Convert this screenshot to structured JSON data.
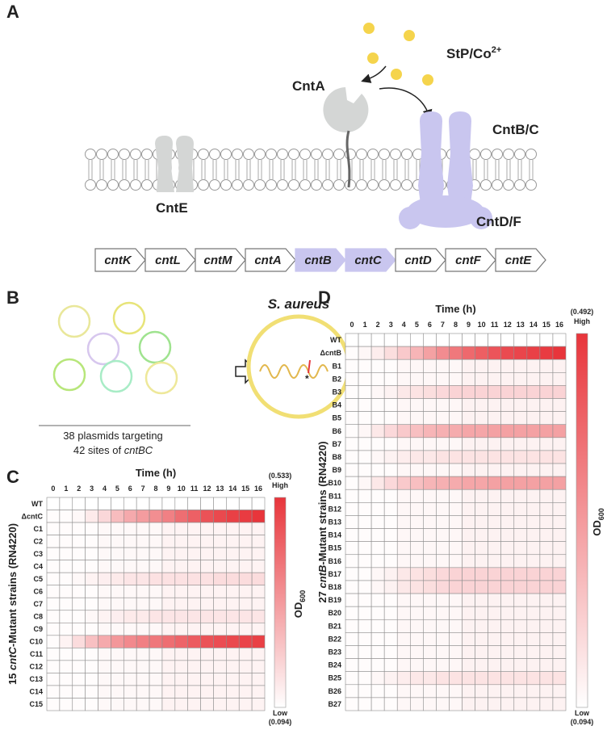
{
  "panels": {
    "a": "A",
    "b": "B",
    "c": "C",
    "d": "D"
  },
  "diagram": {
    "ligand": {
      "text": "StP/Co",
      "sup": "2+"
    },
    "cntA": "CntA",
    "cntBC": "CntB/C",
    "cntE": "CntE",
    "cntDF": "CntD/F",
    "genes": [
      {
        "name": "cntK",
        "highlight": false
      },
      {
        "name": "cntL",
        "highlight": false
      },
      {
        "name": "cntM",
        "highlight": false
      },
      {
        "name": "cntA",
        "highlight": false
      },
      {
        "name": "cntB",
        "highlight": true
      },
      {
        "name": "cntC",
        "highlight": true
      },
      {
        "name": "cntD",
        "highlight": false
      },
      {
        "name": "cntF",
        "highlight": false
      },
      {
        "name": "cntE",
        "highlight": false
      }
    ],
    "plasmids_line1": "38 plasmids targeting",
    "plasmids_line2": {
      "text": "42 sites of ",
      "italic": "cntBC"
    },
    "organism": "S. aureus"
  },
  "chart_data": [
    {
      "type": "heatmap",
      "title": "Time (h)",
      "ylabel": {
        "prefix": "15 ",
        "italic": "cntC",
        "suffix": "-Mutant strains (RN4220)"
      },
      "x": [
        0,
        1,
        2,
        3,
        4,
        5,
        6,
        7,
        8,
        9,
        10,
        11,
        12,
        13,
        14,
        15,
        16
      ],
      "y": [
        "WT",
        "ΔcntC",
        "C1",
        "C2",
        "C3",
        "C4",
        "C5",
        "C6",
        "C7",
        "C8",
        "C9",
        "C10",
        "C11",
        "C12",
        "C13",
        "C14",
        "C15"
      ],
      "highlighted": [
        6,
        11
      ],
      "highlight_color": "#e8383d",
      "low_color": "#ffffff",
      "high_color": "#e8353b",
      "clim": [
        0.094,
        0.533
      ],
      "cticks": [
        {
          "value": 0.533,
          "label": "(0.533)"
        },
        {
          "value": 0.094,
          "label": "(0.094)"
        }
      ],
      "clabels": {
        "high": "High",
        "low": "Low"
      },
      "colorbar_label": {
        "text": "OD",
        "sub": "600"
      },
      "values": [
        [
          0.094,
          0.094,
          0.094,
          0.094,
          0.094,
          0.094,
          0.094,
          0.094,
          0.094,
          0.094,
          0.094,
          0.094,
          0.094,
          0.094,
          0.094,
          0.094,
          0.094
        ],
        [
          0.1,
          0.1,
          0.11,
          0.14,
          0.18,
          0.24,
          0.28,
          0.31,
          0.34,
          0.37,
          0.41,
          0.44,
          0.47,
          0.49,
          0.51,
          0.52,
          0.533
        ],
        [
          0.1,
          0.1,
          0.1,
          0.1,
          0.11,
          0.11,
          0.11,
          0.11,
          0.11,
          0.12,
          0.12,
          0.12,
          0.12,
          0.12,
          0.12,
          0.12,
          0.12
        ],
        [
          0.1,
          0.1,
          0.1,
          0.1,
          0.11,
          0.11,
          0.11,
          0.11,
          0.11,
          0.12,
          0.12,
          0.12,
          0.12,
          0.12,
          0.12,
          0.12,
          0.12
        ],
        [
          0.1,
          0.1,
          0.1,
          0.1,
          0.11,
          0.11,
          0.11,
          0.11,
          0.11,
          0.12,
          0.12,
          0.12,
          0.12,
          0.12,
          0.12,
          0.12,
          0.12
        ],
        [
          0.1,
          0.1,
          0.1,
          0.1,
          0.11,
          0.11,
          0.11,
          0.11,
          0.11,
          0.12,
          0.12,
          0.12,
          0.12,
          0.12,
          0.12,
          0.12,
          0.12
        ],
        [
          0.1,
          0.1,
          0.11,
          0.12,
          0.13,
          0.14,
          0.15,
          0.15,
          0.16,
          0.16,
          0.16,
          0.16,
          0.16,
          0.17,
          0.17,
          0.17,
          0.17
        ],
        [
          0.1,
          0.1,
          0.1,
          0.1,
          0.11,
          0.11,
          0.11,
          0.11,
          0.11,
          0.12,
          0.12,
          0.12,
          0.12,
          0.12,
          0.12,
          0.12,
          0.12
        ],
        [
          0.1,
          0.1,
          0.1,
          0.1,
          0.11,
          0.11,
          0.11,
          0.11,
          0.11,
          0.12,
          0.12,
          0.12,
          0.12,
          0.12,
          0.12,
          0.12,
          0.12
        ],
        [
          0.1,
          0.1,
          0.1,
          0.11,
          0.12,
          0.13,
          0.14,
          0.14,
          0.15,
          0.15,
          0.15,
          0.15,
          0.15,
          0.15,
          0.15,
          0.15,
          0.15
        ],
        [
          0.1,
          0.1,
          0.1,
          0.1,
          0.11,
          0.11,
          0.11,
          0.11,
          0.11,
          0.12,
          0.12,
          0.12,
          0.12,
          0.12,
          0.12,
          0.12,
          0.12
        ],
        [
          0.1,
          0.12,
          0.17,
          0.23,
          0.28,
          0.32,
          0.35,
          0.37,
          0.39,
          0.41,
          0.43,
          0.45,
          0.47,
          0.48,
          0.49,
          0.5,
          0.51
        ],
        [
          0.1,
          0.1,
          0.1,
          0.1,
          0.11,
          0.11,
          0.11,
          0.11,
          0.11,
          0.12,
          0.12,
          0.12,
          0.12,
          0.12,
          0.12,
          0.12,
          0.12
        ],
        [
          0.1,
          0.1,
          0.1,
          0.1,
          0.11,
          0.11,
          0.11,
          0.11,
          0.11,
          0.12,
          0.12,
          0.12,
          0.12,
          0.12,
          0.12,
          0.12,
          0.12
        ],
        [
          0.1,
          0.1,
          0.1,
          0.1,
          0.11,
          0.11,
          0.11,
          0.11,
          0.11,
          0.12,
          0.12,
          0.12,
          0.12,
          0.12,
          0.12,
          0.12,
          0.12
        ],
        [
          0.1,
          0.1,
          0.1,
          0.1,
          0.11,
          0.11,
          0.11,
          0.11,
          0.11,
          0.12,
          0.12,
          0.12,
          0.12,
          0.12,
          0.12,
          0.12,
          0.12
        ],
        [
          0.1,
          0.1,
          0.1,
          0.1,
          0.11,
          0.11,
          0.11,
          0.11,
          0.11,
          0.12,
          0.12,
          0.12,
          0.12,
          0.12,
          0.12,
          0.12,
          0.12
        ]
      ]
    },
    {
      "type": "heatmap",
      "title": "Time (h)",
      "ylabel": {
        "prefix": "27 ",
        "italic": "cntB",
        "suffix": "-Mutant strains (RN4220)"
      },
      "x": [
        0,
        1,
        2,
        3,
        4,
        5,
        6,
        7,
        8,
        9,
        10,
        11,
        12,
        13,
        14,
        15,
        16
      ],
      "y": [
        "WT",
        "ΔcntB",
        "B1",
        "B2",
        "B3",
        "B4",
        "B5",
        "B6",
        "B7",
        "B8",
        "B9",
        "B10",
        "B11",
        "B12",
        "B13",
        "B14",
        "B15",
        "B16",
        "B17",
        "B18",
        "B19",
        "B20",
        "B21",
        "B22",
        "B23",
        "B24",
        "B25",
        "B26",
        "B27"
      ],
      "highlighted": [
        7,
        11
      ],
      "highlight_color": "#e8383d",
      "low_color": "#ffffff",
      "high_color": "#e8353b",
      "clim": [
        0.094,
        0.492
      ],
      "cticks": [
        {
          "value": 0.492,
          "label": "(0.492)"
        },
        {
          "value": 0.094,
          "label": "(0.094)"
        }
      ],
      "clabels": {
        "high": "High",
        "low": "Low"
      },
      "colorbar_label": {
        "text": "OD",
        "sub": "600"
      },
      "values": [
        [
          0.094,
          0.094,
          0.094,
          0.094,
          0.094,
          0.094,
          0.094,
          0.094,
          0.094,
          0.094,
          0.094,
          0.094,
          0.094,
          0.094,
          0.094,
          0.094,
          0.094
        ],
        [
          0.1,
          0.11,
          0.13,
          0.16,
          0.2,
          0.24,
          0.28,
          0.32,
          0.36,
          0.39,
          0.41,
          0.43,
          0.45,
          0.46,
          0.47,
          0.48,
          0.492
        ],
        [
          0.1,
          0.1,
          0.1,
          0.1,
          0.11,
          0.11,
          0.11,
          0.11,
          0.11,
          0.12,
          0.12,
          0.12,
          0.12,
          0.12,
          0.12,
          0.12,
          0.12
        ],
        [
          0.1,
          0.1,
          0.1,
          0.1,
          0.11,
          0.11,
          0.11,
          0.11,
          0.11,
          0.12,
          0.12,
          0.12,
          0.12,
          0.12,
          0.12,
          0.12,
          0.12
        ],
        [
          0.1,
          0.1,
          0.11,
          0.12,
          0.14,
          0.15,
          0.16,
          0.17,
          0.18,
          0.18,
          0.18,
          0.18,
          0.18,
          0.18,
          0.18,
          0.18,
          0.18
        ],
        [
          0.1,
          0.1,
          0.1,
          0.1,
          0.11,
          0.11,
          0.11,
          0.11,
          0.11,
          0.12,
          0.12,
          0.12,
          0.12,
          0.12,
          0.12,
          0.12,
          0.12
        ],
        [
          0.1,
          0.1,
          0.1,
          0.1,
          0.11,
          0.11,
          0.11,
          0.11,
          0.11,
          0.12,
          0.12,
          0.12,
          0.12,
          0.12,
          0.12,
          0.12,
          0.12
        ],
        [
          0.1,
          0.11,
          0.14,
          0.17,
          0.2,
          0.22,
          0.24,
          0.25,
          0.26,
          0.27,
          0.27,
          0.28,
          0.28,
          0.28,
          0.28,
          0.28,
          0.28
        ],
        [
          0.1,
          0.1,
          0.1,
          0.1,
          0.11,
          0.11,
          0.11,
          0.11,
          0.11,
          0.12,
          0.12,
          0.12,
          0.12,
          0.12,
          0.12,
          0.12,
          0.12
        ],
        [
          0.1,
          0.1,
          0.11,
          0.12,
          0.13,
          0.14,
          0.14,
          0.15,
          0.15,
          0.15,
          0.15,
          0.15,
          0.15,
          0.15,
          0.15,
          0.15,
          0.15
        ],
        [
          0.1,
          0.1,
          0.1,
          0.1,
          0.11,
          0.11,
          0.11,
          0.11,
          0.11,
          0.12,
          0.12,
          0.12,
          0.12,
          0.12,
          0.12,
          0.12,
          0.12
        ],
        [
          0.1,
          0.11,
          0.14,
          0.17,
          0.2,
          0.22,
          0.24,
          0.25,
          0.26,
          0.27,
          0.27,
          0.28,
          0.28,
          0.28,
          0.28,
          0.28,
          0.28
        ],
        [
          0.1,
          0.1,
          0.1,
          0.1,
          0.11,
          0.11,
          0.11,
          0.11,
          0.11,
          0.12,
          0.12,
          0.12,
          0.12,
          0.12,
          0.12,
          0.12,
          0.12
        ],
        [
          0.1,
          0.1,
          0.1,
          0.1,
          0.11,
          0.11,
          0.11,
          0.11,
          0.11,
          0.12,
          0.12,
          0.12,
          0.12,
          0.12,
          0.12,
          0.12,
          0.12
        ],
        [
          0.1,
          0.1,
          0.1,
          0.1,
          0.11,
          0.11,
          0.11,
          0.11,
          0.11,
          0.12,
          0.12,
          0.12,
          0.12,
          0.12,
          0.12,
          0.12,
          0.12
        ],
        [
          0.1,
          0.1,
          0.1,
          0.1,
          0.11,
          0.11,
          0.11,
          0.11,
          0.11,
          0.12,
          0.12,
          0.12,
          0.12,
          0.12,
          0.12,
          0.12,
          0.12
        ],
        [
          0.1,
          0.1,
          0.1,
          0.1,
          0.11,
          0.11,
          0.11,
          0.11,
          0.11,
          0.12,
          0.12,
          0.12,
          0.12,
          0.12,
          0.12,
          0.12,
          0.12
        ],
        [
          0.1,
          0.1,
          0.1,
          0.1,
          0.11,
          0.11,
          0.11,
          0.11,
          0.11,
          0.12,
          0.12,
          0.12,
          0.12,
          0.12,
          0.12,
          0.12,
          0.12
        ],
        [
          0.1,
          0.1,
          0.11,
          0.12,
          0.14,
          0.15,
          0.16,
          0.17,
          0.18,
          0.18,
          0.18,
          0.18,
          0.18,
          0.18,
          0.18,
          0.18,
          0.18
        ],
        [
          0.1,
          0.1,
          0.11,
          0.12,
          0.14,
          0.15,
          0.16,
          0.17,
          0.18,
          0.18,
          0.18,
          0.18,
          0.18,
          0.18,
          0.18,
          0.18,
          0.18
        ],
        [
          0.1,
          0.1,
          0.1,
          0.1,
          0.11,
          0.11,
          0.11,
          0.11,
          0.11,
          0.12,
          0.12,
          0.12,
          0.12,
          0.12,
          0.12,
          0.12,
          0.12
        ],
        [
          0.1,
          0.1,
          0.1,
          0.1,
          0.11,
          0.11,
          0.11,
          0.11,
          0.11,
          0.12,
          0.12,
          0.12,
          0.12,
          0.12,
          0.12,
          0.12,
          0.12
        ],
        [
          0.1,
          0.1,
          0.1,
          0.1,
          0.11,
          0.11,
          0.11,
          0.11,
          0.11,
          0.12,
          0.12,
          0.12,
          0.12,
          0.12,
          0.12,
          0.12,
          0.12
        ],
        [
          0.1,
          0.1,
          0.1,
          0.1,
          0.11,
          0.11,
          0.11,
          0.11,
          0.11,
          0.12,
          0.12,
          0.12,
          0.12,
          0.12,
          0.12,
          0.12,
          0.12
        ],
        [
          0.1,
          0.1,
          0.1,
          0.1,
          0.11,
          0.11,
          0.11,
          0.11,
          0.11,
          0.12,
          0.12,
          0.12,
          0.12,
          0.12,
          0.12,
          0.12,
          0.12
        ],
        [
          0.1,
          0.1,
          0.1,
          0.1,
          0.11,
          0.11,
          0.11,
          0.11,
          0.11,
          0.12,
          0.12,
          0.12,
          0.12,
          0.12,
          0.12,
          0.12,
          0.12
        ],
        [
          0.1,
          0.1,
          0.11,
          0.12,
          0.13,
          0.14,
          0.14,
          0.15,
          0.15,
          0.15,
          0.15,
          0.15,
          0.15,
          0.15,
          0.15,
          0.15,
          0.15
        ],
        [
          0.1,
          0.1,
          0.1,
          0.1,
          0.11,
          0.11,
          0.11,
          0.11,
          0.11,
          0.12,
          0.12,
          0.12,
          0.12,
          0.12,
          0.12,
          0.12,
          0.12
        ],
        [
          0.1,
          0.1,
          0.1,
          0.1,
          0.11,
          0.11,
          0.11,
          0.11,
          0.11,
          0.12,
          0.12,
          0.12,
          0.12,
          0.12,
          0.12,
          0.12,
          0.12
        ]
      ]
    }
  ]
}
